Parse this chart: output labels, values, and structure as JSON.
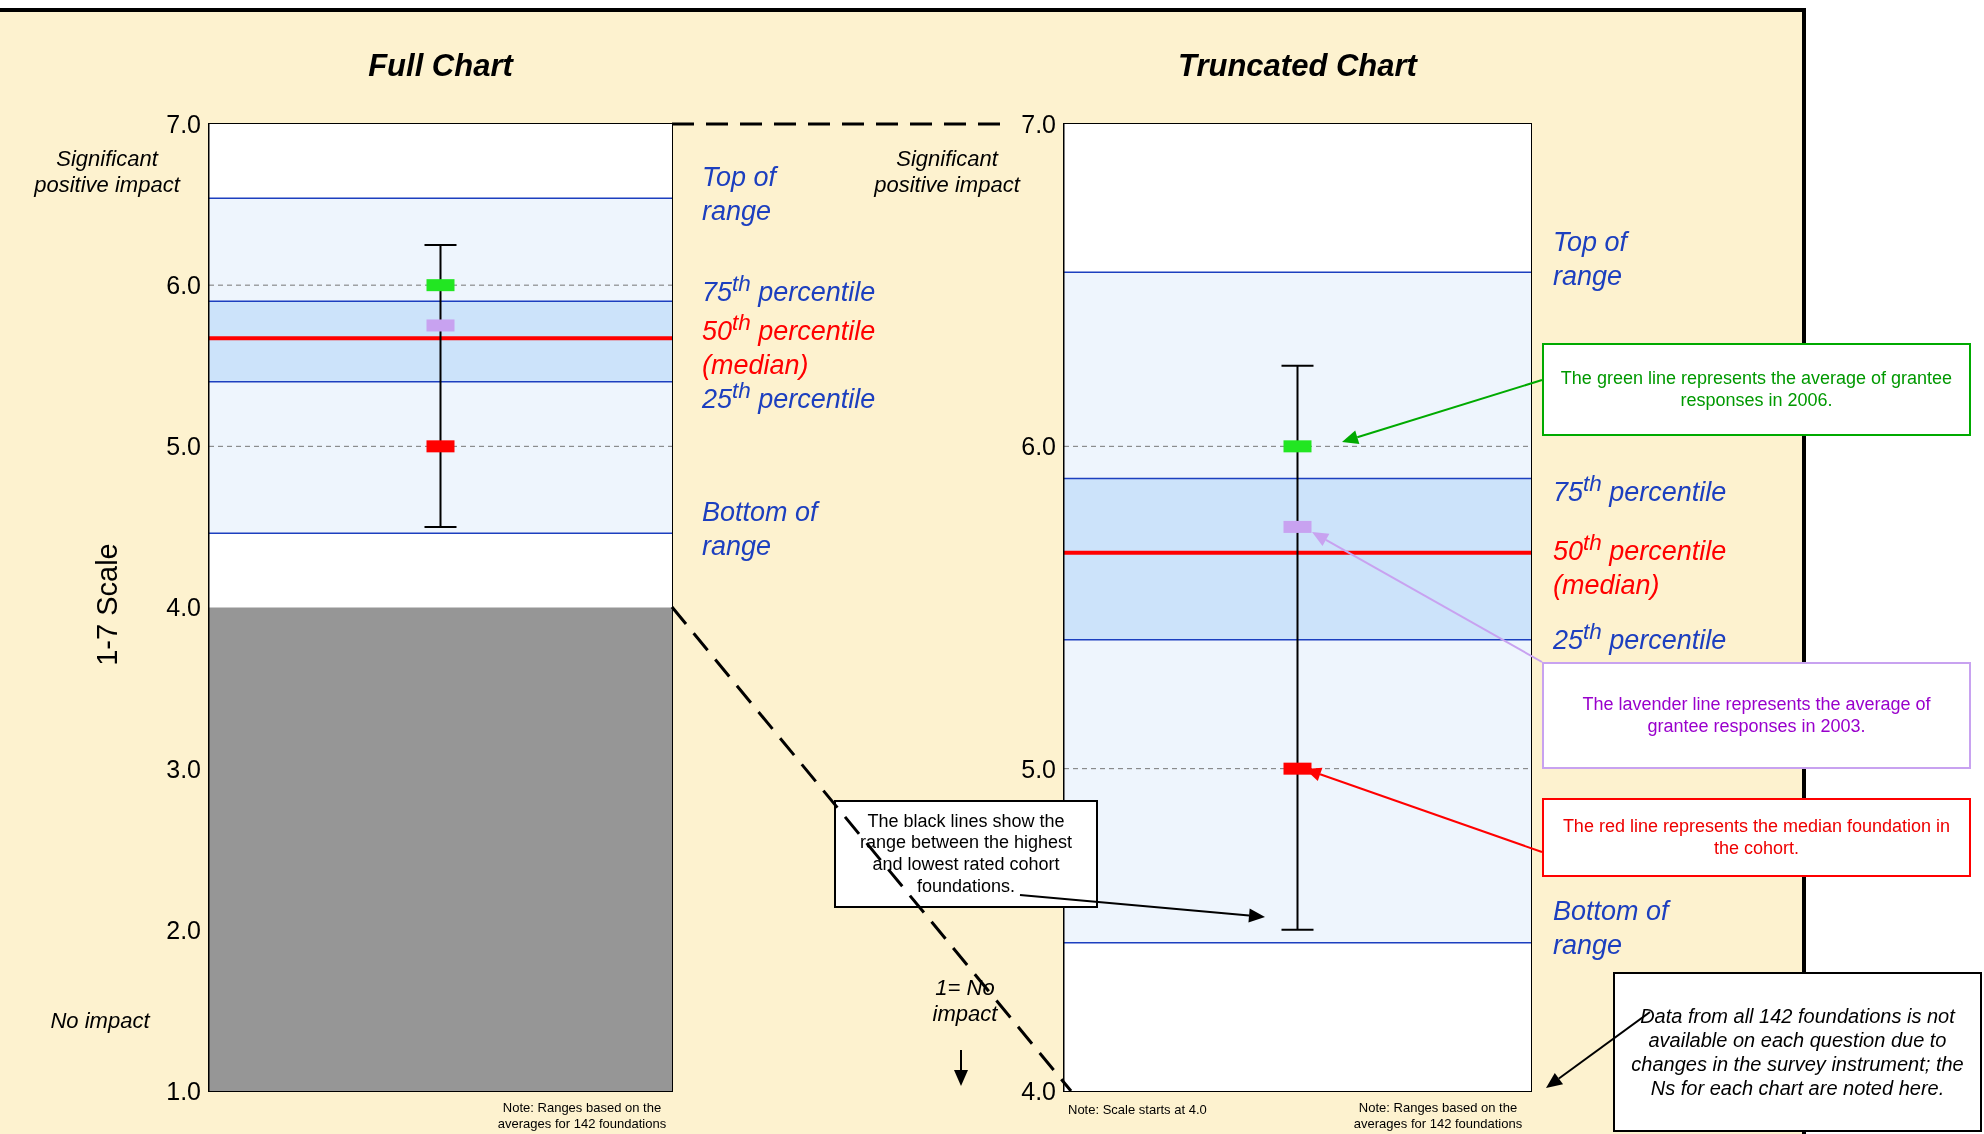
{
  "chart_data": [
    {
      "type": "scatter",
      "title": "Full Chart",
      "ylabel": "1-7 Scale",
      "categories": [
        null
      ],
      "tick_labels": "y",
      "ylim": [
        1,
        7
      ],
      "yticks": [
        {
          "value": 1,
          "label": "1.0"
        },
        {
          "value": 2,
          "label": "2.0"
        },
        {
          "value": 3,
          "label": "3.0"
        },
        {
          "value": 4,
          "label": "4.0"
        },
        {
          "value": 5,
          "label": "5.0"
        },
        {
          "value": 6,
          "label": "6.0"
        },
        {
          "value": 7,
          "label": "7.0"
        }
      ],
      "series": [
        {
          "color": "#22e622",
          "values": [
            6.0
          ]
        },
        {
          "color": "#c8a2f0",
          "values": [
            5.75
          ]
        },
        {
          "color": "#ff0000",
          "values": [
            5.0
          ],
          "errors": [
            [
              4.5,
              6.25
            ]
          ]
        }
      ],
      "bands": [
        {
          "axis": "y",
          "from": 1,
          "to": 4,
          "color": "#969696"
        },
        {
          "axis": "y",
          "from": 4.46,
          "to": 6.54,
          "color": "#eef5fd"
        },
        {
          "axis": "y",
          "from": 5.4,
          "to": 5.9,
          "color": "#cce3fa"
        }
      ],
      "ref_lines": [
        {
          "axis": "y",
          "value": 6.54,
          "label": "Top of range",
          "color": "#1c3fbf"
        },
        {
          "axis": "y",
          "value": 5.9,
          "label": "75$^{th}$ percentile",
          "color": "#1c3fbf"
        },
        {
          "axis": "y",
          "value": 5.67,
          "label": "50$^{th}$ percentile (median)",
          "color": "#ff0000"
        },
        {
          "axis": "y",
          "value": 5.4,
          "label": "25$^{th}$ percentile",
          "color": "#1c3fbf"
        },
        {
          "axis": "y",
          "value": 4.46,
          "label": "Bottom of range",
          "color": "#1c3fbf"
        },
        {
          "axis": "y",
          "value": 6,
          "label": null,
          "color": "#777777",
          "line_style": "dashed"
        },
        {
          "axis": "y",
          "value": 5,
          "label": null,
          "color": "#777777",
          "line_style": "dashed"
        }
      ],
      "annotations": [
        "Significant positive impact",
        "No impact",
        "Note: Ranges based on the averages for 142 foundations",
        "1= No impact"
      ]
    },
    {
      "type": "scatter",
      "title": "Truncated Chart",
      "categories": [
        null
      ],
      "tick_labels": "y",
      "ylim": [
        4,
        7
      ],
      "yticks": [
        {
          "value": 4,
          "label": "4.0"
        },
        {
          "value": 5,
          "label": "5.0"
        },
        {
          "value": 6,
          "label": "6.0"
        },
        {
          "value": 7,
          "label": "7.0"
        }
      ],
      "series": [
        {
          "color": "#22e622",
          "values": [
            6.0
          ]
        },
        {
          "color": "#c8a2f0",
          "values": [
            5.75
          ]
        },
        {
          "color": "#ff0000",
          "values": [
            5.0
          ],
          "errors": [
            [
              4.5,
              6.25
            ]
          ]
        }
      ],
      "bands": [
        {
          "axis": "y",
          "from": 4.46,
          "to": 6.54,
          "color": "#eef5fd"
        },
        {
          "axis": "y",
          "from": 5.4,
          "to": 5.9,
          "color": "#cce3fa"
        }
      ],
      "ref_lines": [
        {
          "axis": "y",
          "value": 6.54,
          "label": "Top of range",
          "color": "#1c3fbf"
        },
        {
          "axis": "y",
          "value": 5.9,
          "label": "75$^{th}$ percentile",
          "color": "#1c3fbf"
        },
        {
          "axis": "y",
          "value": 5.67,
          "label": "50$^{th}$ percentile (median)",
          "color": "#ff0000"
        },
        {
          "axis": "y",
          "value": 5.4,
          "label": "25$^{th}$ percentile",
          "color": "#1c3fbf"
        },
        {
          "axis": "y",
          "value": 4.46,
          "label": "Bottom of range",
          "color": "#1c3fbf"
        },
        {
          "axis": "y",
          "value": 6,
          "label": null,
          "color": "#777777",
          "line_style": "dashed"
        },
        {
          "axis": "y",
          "value": 5,
          "label": null,
          "color": "#777777",
          "line_style": "dashed"
        }
      ],
      "annotations": [
        "Significant positive impact",
        "Note: Scale starts at 4.0",
        "Note: Ranges based on the averages for 142 foundations",
        "The green line represents the average of grantee responses in 2006.",
        "The lavender line represents the average of grantee responses in 2003.",
        "The red line represents the median foundation in the cohort.",
        "The black lines show the range between the highest and lowest rated cohort foundations.",
        "Data from all 142 foundations is not available on each question due to changes in the survey instrument; the Ns for each chart are noted here."
      ]
    }
  ]
}
